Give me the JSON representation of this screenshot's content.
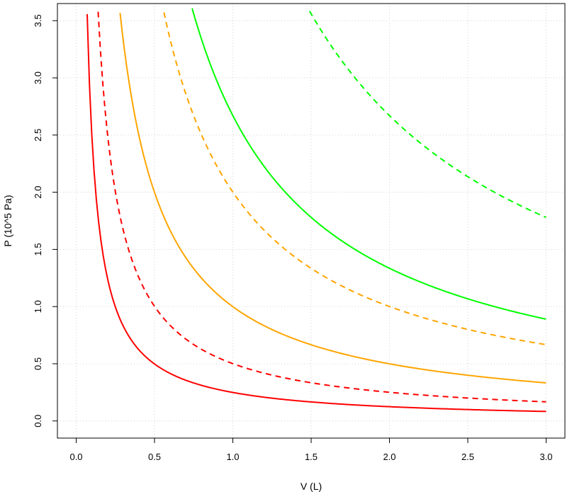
{
  "chart_data": {
    "type": "line",
    "title": "",
    "xlabel": "V (L)",
    "ylabel": "P (10^5 Pa)",
    "xlim": [
      -0.12,
      3.12
    ],
    "ylim": [
      -0.15,
      3.65
    ],
    "x_ticks": [
      0.0,
      0.5,
      1.0,
      1.5,
      2.0,
      2.5,
      3.0
    ],
    "x_tick_labels": [
      "0.0",
      "0.5",
      "1.0",
      "1.5",
      "2.0",
      "2.5",
      "3.0"
    ],
    "y_ticks": [
      0.0,
      0.5,
      1.0,
      1.5,
      2.0,
      2.5,
      3.0,
      3.5
    ],
    "y_tick_labels": [
      "0.0",
      "0.5",
      "1.0",
      "1.5",
      "2.0",
      "2.5",
      "3.0",
      "3.5"
    ],
    "grid": true,
    "legend": "none",
    "series": [
      {
        "color": "#ff0000",
        "dash": "solid",
        "x": [
          0.07,
          0.1,
          0.15,
          0.2,
          0.3,
          0.4,
          0.5,
          0.75,
          1.0,
          1.5,
          2.0,
          2.5,
          3.0
        ],
        "y": [
          3.57,
          2.5,
          1.67,
          1.25,
          0.83,
          0.63,
          0.5,
          0.33,
          0.25,
          0.17,
          0.125,
          0.1,
          0.083
        ]
      },
      {
        "color": "#ff0000",
        "dash": "dashed",
        "x": [
          0.14,
          0.2,
          0.3,
          0.4,
          0.5,
          0.75,
          1.0,
          1.5,
          2.0,
          2.5,
          3.0
        ],
        "y": [
          3.57,
          2.5,
          1.67,
          1.25,
          1.0,
          0.67,
          0.5,
          0.33,
          0.25,
          0.2,
          0.167
        ]
      },
      {
        "color": "#ffa500",
        "dash": "solid",
        "x": [
          0.28,
          0.35,
          0.5,
          0.75,
          1.0,
          1.25,
          1.5,
          2.0,
          2.5,
          3.0
        ],
        "y": [
          3.57,
          2.86,
          2.0,
          1.33,
          1.0,
          0.8,
          0.67,
          0.5,
          0.4,
          0.333
        ]
      },
      {
        "color": "#ffa500",
        "dash": "dashed",
        "x": [
          0.56,
          0.75,
          1.0,
          1.25,
          1.5,
          2.0,
          2.5,
          3.0
        ],
        "y": [
          3.57,
          2.67,
          2.0,
          1.6,
          1.33,
          1.0,
          0.8,
          0.667
        ]
      },
      {
        "color": "#00ff00",
        "dash": "solid",
        "x": [
          0.74,
          1.0,
          1.25,
          1.5,
          2.0,
          2.5,
          3.0
        ],
        "y": [
          3.6,
          2.67,
          2.13,
          1.78,
          1.33,
          1.07,
          0.89
        ]
      },
      {
        "color": "#00ff00",
        "dash": "dashed",
        "x": [
          1.49,
          1.75,
          2.0,
          2.25,
          2.5,
          2.75,
          3.0
        ],
        "y": [
          3.58,
          3.05,
          2.67,
          2.37,
          2.13,
          1.94,
          1.78
        ]
      }
    ]
  }
}
